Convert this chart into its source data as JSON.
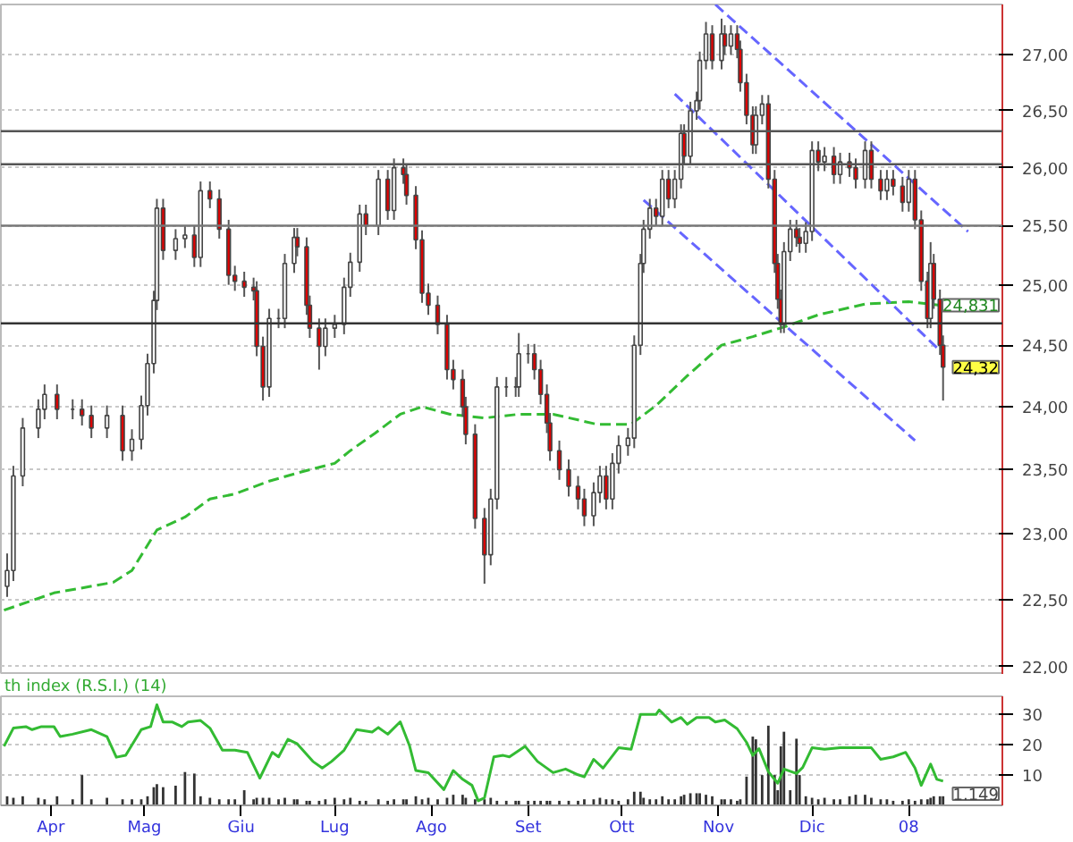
{
  "chart_data": [
    {
      "type": "candlestick",
      "log": true,
      "xlim": [
        "2007-03-16",
        "2008-01-31"
      ],
      "ylim": [
        21.94,
        27.46
      ],
      "tick_labels": "y",
      "grid": "y",
      "yticks": [
        {
          "value": 22,
          "label": "22,00"
        },
        {
          "value": 22.5,
          "label": "22,50"
        },
        {
          "value": 23,
          "label": "23,00"
        },
        {
          "value": 23.5,
          "label": "23,50"
        },
        {
          "value": 24,
          "label": "24,00"
        },
        {
          "value": 24.5,
          "label": "24,50"
        },
        {
          "value": 25,
          "label": "25,00"
        },
        {
          "value": 25.5,
          "label": "25,50"
        },
        {
          "value": 26,
          "label": "26,00"
        },
        {
          "value": 26.5,
          "label": "26,50"
        },
        {
          "value": 27,
          "label": "27,00"
        }
      ],
      "colors": [
        "#ffffff",
        "#ffffff",
        "#ffffff",
        "#ffffff",
        "#ffffff",
        "#e00000",
        "#444444",
        "#e00000",
        "#e00000",
        "#ffffff",
        "#e00000",
        "#ffffff",
        "#ffffff",
        "#ffffff",
        "#ffffff",
        "#ffffff",
        "#e00000",
        "#ffffff",
        "#ffffff",
        "#e00000",
        "#ffffff",
        "#e00000",
        "#e00000",
        "#e00000",
        "#e00000",
        "#e00000",
        "#e00000",
        "#e00000",
        "#e00000",
        "#ffffff",
        "#444444",
        "#ffffff",
        "#ffffff",
        "#e00000",
        "#e00000",
        "#e00000",
        "#e00000",
        "#ffffff",
        "#ffffff",
        "#ffffff",
        "#ffffff",
        "#ffffff",
        "#e00000",
        "#ffffff",
        "#e00000",
        "#ffffff",
        "#e00000",
        "#e00000",
        "#e00000",
        "#e00000",
        "#e00000",
        "#e00000",
        "#e00000",
        "#e00000",
        "#e00000",
        "#e00000",
        "#e00000",
        "#e00000",
        "#ffffff",
        "#ffffff",
        "#444444",
        "#444444",
        "#ffffff",
        "#444444",
        "#e00000",
        "#e00000",
        "#e00000",
        "#e00000",
        "#e00000",
        "#e00000",
        "#e00000",
        "#e00000",
        "#ffffff",
        "#ffffff",
        "#e00000",
        "#ffffff",
        "#ffffff",
        "#ffffff",
        "#ffffff",
        "#ffffff",
        "#ffffff",
        "#ffffff",
        "#e00000",
        "#ffffff",
        "#e00000",
        "#ffffff",
        "#ffffff",
        "#e00000",
        "#ffffff",
        "#ffffff",
        "#ffffff",
        "#ffffff",
        "#e00000",
        "#ffffff",
        "#e00000",
        "#ffffff",
        "#e00000",
        "#e00000",
        "#e00000",
        "#e00000",
        "#ffffff",
        "#ffffff",
        "#e00000",
        "#e00000",
        "#e00000",
        "#e00000",
        "#ffffff",
        "#ffffff",
        "#e00000",
        "#e00000",
        "#ffffff",
        "#ffffff",
        "#e00000",
        "#ffffff",
        "#e00000",
        "#ffffff",
        "#e00000",
        "#e00000",
        "#ffffff",
        "#e00000",
        "#e00000",
        "#ffffff",
        "#e00000",
        "#e00000",
        "#ffffff",
        "#e00000",
        "#e00000",
        "#e00000",
        "#ffffff",
        "#e00000",
        "#e00000",
        "#e00000"
      ],
      "x": [
        "2007-03-18",
        "2007-03-20",
        "2007-03-23",
        "2007-03-28",
        "2007-03-30",
        "2007-04-03",
        "2007-04-08",
        "2007-04-11",
        "2007-04-14",
        "2007-04-19",
        "2007-04-24",
        "2007-04-27",
        "2007-04-30",
        "2007-05-02",
        "2007-05-04",
        "2007-05-05",
        "2007-05-07",
        "2007-05-11",
        "2007-05-14",
        "2007-05-17",
        "2007-05-19",
        "2007-05-22",
        "2007-05-25",
        "2007-05-28",
        "2007-05-30",
        "2007-06-02",
        "2007-06-05",
        "2007-06-06",
        "2007-06-08",
        "2007-06-10",
        "2007-06-13",
        "2007-06-15",
        "2007-06-18",
        "2007-06-19",
        "2007-06-22",
        "2007-06-23",
        "2007-06-26",
        "2007-06-28",
        "2007-07-01",
        "2007-07-04",
        "2007-07-06",
        "2007-07-09",
        "2007-07-11",
        "2007-07-15",
        "2007-07-18",
        "2007-07-20",
        "2007-07-23",
        "2007-07-24",
        "2007-07-27",
        "2007-07-29",
        "2007-07-31",
        "2007-08-03",
        "2007-08-06",
        "2007-08-08",
        "2007-08-11",
        "2007-08-12",
        "2007-08-15",
        "2007-08-18",
        "2007-08-20",
        "2007-08-22",
        "2007-08-25",
        "2007-08-28",
        "2007-08-29",
        "2007-09-01",
        "2007-09-03",
        "2007-09-05",
        "2007-09-07",
        "2007-09-08",
        "2007-09-11",
        "2007-09-14",
        "2007-09-17",
        "2007-09-19",
        "2007-09-22",
        "2007-09-24",
        "2007-09-26",
        "2007-09-28",
        "2007-09-30",
        "2007-10-03",
        "2007-10-05",
        "2007-10-07",
        "2007-10-08",
        "2007-10-10",
        "2007-10-12",
        "2007-10-14",
        "2007-10-16",
        "2007-10-18",
        "2007-10-20",
        "2007-10-21",
        "2007-10-23",
        "2007-10-25",
        "2007-10-26",
        "2007-10-28",
        "2007-10-30",
        "2007-11-02",
        "2007-11-03",
        "2007-11-05",
        "2007-11-07",
        "2007-11-08",
        "2007-11-10",
        "2007-11-12",
        "2007-11-13",
        "2007-11-15",
        "2007-11-17",
        "2007-11-19",
        "2007-11-20",
        "2007-11-21",
        "2007-11-22",
        "2007-11-24",
        "2007-11-26",
        "2007-11-27",
        "2007-11-29",
        "2007-12-01",
        "2007-12-03",
        "2007-12-05",
        "2007-12-08",
        "2007-12-10",
        "2007-12-13",
        "2007-12-15",
        "2007-12-18",
        "2007-12-20",
        "2007-12-23",
        "2007-12-25",
        "2007-12-27",
        "2007-12-30",
        "2008-01-01",
        "2008-01-03",
        "2008-01-05",
        "2008-01-07",
        "2008-01-08",
        "2008-01-09",
        "2008-01-11",
        "2008-01-12"
      ],
      "ohlc": [
        [
          22.6,
          22.85,
          22.52,
          22.72
        ],
        [
          22.72,
          23.53,
          22.64,
          23.45
        ],
        [
          23.45,
          23.91,
          23.37,
          23.83
        ],
        [
          23.83,
          24.06,
          23.75,
          23.98
        ],
        [
          23.98,
          24.18,
          23.9,
          24.1
        ],
        [
          24.1,
          24.18,
          23.9,
          23.98
        ],
        [
          23.98,
          24.06,
          23.9,
          23.98
        ],
        [
          23.98,
          24.06,
          23.85,
          23.93
        ],
        [
          23.93,
          24.01,
          23.75,
          23.83
        ],
        [
          23.83,
          24.01,
          23.75,
          23.93
        ],
        [
          23.93,
          24.01,
          23.57,
          23.65
        ],
        [
          23.65,
          23.82,
          23.57,
          23.74
        ],
        [
          23.74,
          24.09,
          23.66,
          24.01
        ],
        [
          24.01,
          24.43,
          23.93,
          24.35
        ],
        [
          24.35,
          24.95,
          24.27,
          24.87
        ],
        [
          24.87,
          25.73,
          24.79,
          25.65
        ],
        [
          25.65,
          25.73,
          25.21,
          25.29
        ],
        [
          25.29,
          25.47,
          25.21,
          25.39
        ],
        [
          25.39,
          25.5,
          25.31,
          25.42
        ],
        [
          25.42,
          25.5,
          25.15,
          25.23
        ],
        [
          25.23,
          25.88,
          25.15,
          25.8
        ],
        [
          25.8,
          25.88,
          25.65,
          25.73
        ],
        [
          25.73,
          25.81,
          25.39,
          25.47
        ],
        [
          25.47,
          25.55,
          25.0,
          25.08
        ],
        [
          25.08,
          25.16,
          24.95,
          25.03
        ],
        [
          25.03,
          25.11,
          24.9,
          24.98
        ],
        [
          24.98,
          25.06,
          24.87,
          24.95
        ],
        [
          24.95,
          25.03,
          24.41,
          24.49
        ],
        [
          24.49,
          24.57,
          24.05,
          24.16
        ],
        [
          24.16,
          24.8,
          24.08,
          24.72
        ],
        [
          24.72,
          24.8,
          24.64,
          24.72
        ],
        [
          24.72,
          25.26,
          24.64,
          25.18
        ],
        [
          25.18,
          25.48,
          25.1,
          25.4
        ],
        [
          25.4,
          25.48,
          25.24,
          25.32
        ],
        [
          25.32,
          25.4,
          24.75,
          24.83
        ],
        [
          24.83,
          24.91,
          24.56,
          24.64
        ],
        [
          24.64,
          24.72,
          24.3,
          24.49
        ],
        [
          24.49,
          24.72,
          24.41,
          24.64
        ],
        [
          24.64,
          24.75,
          24.56,
          24.67
        ],
        [
          24.67,
          25.06,
          24.59,
          24.98
        ],
        [
          24.98,
          25.27,
          24.9,
          25.19
        ],
        [
          25.19,
          25.68,
          25.11,
          25.6
        ],
        [
          25.6,
          25.68,
          25.42,
          25.5
        ],
        [
          25.5,
          25.98,
          25.42,
          25.9
        ],
        [
          25.9,
          25.98,
          25.55,
          25.63
        ],
        [
          25.63,
          26.08,
          25.55,
          26.0
        ],
        [
          26.0,
          26.08,
          25.86,
          25.94
        ],
        [
          25.94,
          26.02,
          25.68,
          25.76
        ],
        [
          25.76,
          25.84,
          25.3,
          25.38
        ],
        [
          25.38,
          25.46,
          24.85,
          24.93
        ],
        [
          24.93,
          25.01,
          24.75,
          24.83
        ],
        [
          24.83,
          24.91,
          24.59,
          24.67
        ],
        [
          24.67,
          24.75,
          24.22,
          24.3
        ],
        [
          24.3,
          24.38,
          24.14,
          24.22
        ],
        [
          24.22,
          24.3,
          23.92,
          24.0
        ],
        [
          24.0,
          24.08,
          23.7,
          23.78
        ],
        [
          23.78,
          23.86,
          23.04,
          23.12
        ],
        [
          23.12,
          23.2,
          22.62,
          22.84
        ],
        [
          22.84,
          23.35,
          22.76,
          23.27
        ],
        [
          23.27,
          24.24,
          23.19,
          24.16
        ],
        [
          24.16,
          24.24,
          24.08,
          24.16
        ],
        [
          24.16,
          24.24,
          24.08,
          24.16
        ],
        [
          24.16,
          24.6,
          24.08,
          24.43
        ],
        [
          24.43,
          24.51,
          24.35,
          24.43
        ],
        [
          24.43,
          24.51,
          24.22,
          24.3
        ],
        [
          24.3,
          24.38,
          24.02,
          24.1
        ],
        [
          24.1,
          24.18,
          23.79,
          23.87
        ],
        [
          23.87,
          23.95,
          23.57,
          23.65
        ],
        [
          23.65,
          23.73,
          23.42,
          23.5
        ],
        [
          23.5,
          23.58,
          23.29,
          23.37
        ],
        [
          23.37,
          23.45,
          23.19,
          23.27
        ],
        [
          23.27,
          23.35,
          23.06,
          23.14
        ],
        [
          23.14,
          23.4,
          23.06,
          23.32
        ],
        [
          23.32,
          23.53,
          23.24,
          23.45
        ],
        [
          23.45,
          23.53,
          23.19,
          23.27
        ],
        [
          23.27,
          23.63,
          23.19,
          23.55
        ],
        [
          23.55,
          23.77,
          23.47,
          23.69
        ],
        [
          23.69,
          23.83,
          23.61,
          23.75
        ],
        [
          23.75,
          24.58,
          23.67,
          24.5
        ],
        [
          24.5,
          25.26,
          24.42,
          25.18
        ],
        [
          25.18,
          25.55,
          25.1,
          25.47
        ],
        [
          25.47,
          25.73,
          25.39,
          25.65
        ],
        [
          25.65,
          25.73,
          25.5,
          25.58
        ],
        [
          25.58,
          25.98,
          25.5,
          25.9
        ],
        [
          25.9,
          25.98,
          25.65,
          25.73
        ],
        [
          25.73,
          25.98,
          25.65,
          25.9
        ],
        [
          25.9,
          26.38,
          25.82,
          26.3
        ],
        [
          26.3,
          26.38,
          26.02,
          26.1
        ],
        [
          26.1,
          26.58,
          26.02,
          26.5
        ],
        [
          26.5,
          26.67,
          26.42,
          26.59
        ],
        [
          26.59,
          27.03,
          26.51,
          26.95
        ],
        [
          26.95,
          27.3,
          26.87,
          27.19
        ],
        [
          27.19,
          27.27,
          26.87,
          26.95
        ],
        [
          26.95,
          27.33,
          26.87,
          27.19
        ],
        [
          27.19,
          27.27,
          27.0,
          27.08
        ],
        [
          27.08,
          27.27,
          27.0,
          27.19
        ],
        [
          27.19,
          27.27,
          26.97,
          27.05
        ],
        [
          27.05,
          27.13,
          26.67,
          26.75
        ],
        [
          26.75,
          26.83,
          26.38,
          26.46
        ],
        [
          26.46,
          26.54,
          26.12,
          26.2
        ],
        [
          26.2,
          26.54,
          26.12,
          26.46
        ],
        [
          26.46,
          26.64,
          26.38,
          26.56
        ],
        [
          26.56,
          26.64,
          25.82,
          25.9
        ],
        [
          25.9,
          25.98,
          25.1,
          25.18
        ],
        [
          25.18,
          25.26,
          24.8,
          24.88
        ],
        [
          24.88,
          24.96,
          24.6,
          24.67
        ],
        [
          24.67,
          25.36,
          24.6,
          25.28
        ],
        [
          25.28,
          25.55,
          25.2,
          25.47
        ],
        [
          25.47,
          25.55,
          25.32,
          25.4
        ],
        [
          25.4,
          25.48,
          25.27,
          25.35
        ],
        [
          25.35,
          25.53,
          25.27,
          25.45
        ],
        [
          25.45,
          26.23,
          25.37,
          26.15
        ],
        [
          26.15,
          26.23,
          25.97,
          26.05
        ],
        [
          26.05,
          26.18,
          25.97,
          26.1
        ],
        [
          26.1,
          26.18,
          25.86,
          25.94
        ],
        [
          25.94,
          26.13,
          25.86,
          26.05
        ],
        [
          26.05,
          26.13,
          25.92,
          26.0
        ],
        [
          26.0,
          26.08,
          25.82,
          25.9
        ],
        [
          25.9,
          26.23,
          25.82,
          26.15
        ],
        [
          26.15,
          26.23,
          25.82,
          25.9
        ],
        [
          25.9,
          25.98,
          25.72,
          25.8
        ],
        [
          25.8,
          25.98,
          25.72,
          25.9
        ],
        [
          25.9,
          25.98,
          25.76,
          25.84
        ],
        [
          25.84,
          25.92,
          25.62,
          25.7
        ],
        [
          25.7,
          25.98,
          25.62,
          25.9
        ],
        [
          25.9,
          25.98,
          25.47,
          25.55
        ],
        [
          25.55,
          25.63,
          24.95,
          25.03
        ],
        [
          25.03,
          25.11,
          24.64,
          24.72
        ],
        [
          24.72,
          25.36,
          24.64,
          25.18
        ],
        [
          25.18,
          25.26,
          24.8,
          24.88
        ],
        [
          24.88,
          24.96,
          24.42,
          24.5
        ],
        [
          24.5,
          24.58,
          24.05,
          24.32
        ]
      ],
      "series": [
        {
          "type": "line",
          "color": "#33bb33",
          "line_style": "dashed",
          "x": [
            "2007-03-17",
            "2007-04-02",
            "2007-04-21",
            "2007-04-27",
            "2007-05-05",
            "2007-05-14",
            "2007-05-22",
            "2007-05-30",
            "2007-06-10",
            "2007-06-20",
            "2007-07-01",
            "2007-07-06",
            "2007-07-14",
            "2007-07-22",
            "2007-07-29",
            "2007-08-07",
            "2007-08-18",
            "2007-08-29",
            "2007-09-09",
            "2007-09-23",
            "2007-10-04",
            "2007-10-12",
            "2007-10-22",
            "2007-11-02",
            "2007-11-12",
            "2007-11-22",
            "2007-12-03",
            "2007-12-18",
            "2008-01-01",
            "2008-01-11"
          ],
          "values": [
            22.42,
            22.55,
            22.63,
            22.72,
            23.03,
            23.13,
            23.27,
            23.31,
            23.41,
            23.48,
            23.55,
            23.65,
            23.79,
            23.94,
            24.0,
            23.94,
            23.91,
            23.94,
            23.94,
            23.86,
            23.86,
            24.01,
            24.25,
            24.5,
            24.57,
            24.65,
            24.75,
            24.84,
            24.86,
            24.83
          ]
        },
        {
          "type": "line",
          "color": "#6666ff",
          "line_style": "dashed",
          "x": [
            "2007-10-31",
            "2008-01-20"
          ],
          "values": [
            27.46,
            25.45
          ]
        },
        {
          "type": "line",
          "color": "#6666ff",
          "line_style": "dashed",
          "x": [
            "2007-10-18",
            "2008-01-12"
          ],
          "values": [
            26.65,
            24.43
          ]
        },
        {
          "type": "line",
          "color": "#6666ff",
          "line_style": "dashed",
          "x": [
            "2007-10-08",
            "2008-01-03"
          ],
          "values": [
            25.72,
            23.73
          ]
        }
      ],
      "ref_lines": [
        {
          "axis": "y",
          "value": 26.32,
          "color": "#555555"
        },
        {
          "axis": "y",
          "value": 26.03,
          "color": "#555555"
        },
        {
          "axis": "y",
          "value": 25.5,
          "color": "#777777"
        },
        {
          "axis": "y",
          "value": 24.68,
          "color": "#333333"
        }
      ],
      "annotations": [
        "24,831",
        "24,32"
      ]
    },
    {
      "type": "line",
      "title": "th index (R.S.I.) (14)",
      "xlim": [
        "2007-03-16",
        "2008-01-31"
      ],
      "ylim": [
        0,
        36
      ],
      "grid": "y",
      "yticks": [
        10,
        20,
        30
      ],
      "xticks": [
        {
          "value": "2007-04-01",
          "label": "Apr"
        },
        {
          "value": "2007-05-01",
          "label": "Mag"
        },
        {
          "value": "2007-06-01",
          "label": "Giu"
        },
        {
          "value": "2007-07-01",
          "label": "Lug"
        },
        {
          "value": "2007-08-01",
          "label": "Ago"
        },
        {
          "value": "2007-09-01",
          "label": "Set"
        },
        {
          "value": "2007-10-01",
          "label": "Ott"
        },
        {
          "value": "2007-11-01",
          "label": "Nov"
        },
        {
          "value": "2007-12-01",
          "label": "Dic"
        },
        {
          "value": "2008-01-01",
          "label": "08"
        }
      ],
      "series": [
        {
          "type": "bar",
          "color": "#333333",
          "x": [
            "2007-03-18",
            "2007-03-20",
            "2007-03-23",
            "2007-03-28",
            "2007-03-30",
            "2007-04-03",
            "2007-04-08",
            "2007-04-11",
            "2007-04-14",
            "2007-04-19",
            "2007-04-24",
            "2007-04-27",
            "2007-04-30",
            "2007-05-02",
            "2007-05-04",
            "2007-05-05",
            "2007-05-07",
            "2007-05-11",
            "2007-05-14",
            "2007-05-17",
            "2007-05-19",
            "2007-05-22",
            "2007-05-25",
            "2007-05-28",
            "2007-05-30",
            "2007-06-02",
            "2007-06-05",
            "2007-06-06",
            "2007-06-08",
            "2007-06-10",
            "2007-06-13",
            "2007-06-15",
            "2007-06-18",
            "2007-06-19",
            "2007-06-22",
            "2007-06-23",
            "2007-06-26",
            "2007-06-28",
            "2007-07-01",
            "2007-07-04",
            "2007-07-06",
            "2007-07-09",
            "2007-07-11",
            "2007-07-15",
            "2007-07-18",
            "2007-07-20",
            "2007-07-23",
            "2007-07-24",
            "2007-07-27",
            "2007-07-29",
            "2007-07-31",
            "2007-08-03",
            "2007-08-06",
            "2007-08-08",
            "2007-08-11",
            "2007-08-12",
            "2007-08-15",
            "2007-08-18",
            "2007-08-20",
            "2007-08-22",
            "2007-08-25",
            "2007-08-28",
            "2007-08-29",
            "2007-09-01",
            "2007-09-03",
            "2007-09-05",
            "2007-09-07",
            "2007-09-08",
            "2007-09-11",
            "2007-09-14",
            "2007-09-17",
            "2007-09-19",
            "2007-09-22",
            "2007-09-24",
            "2007-09-26",
            "2007-09-28",
            "2007-09-30",
            "2007-10-03",
            "2007-10-05",
            "2007-10-07",
            "2007-10-08",
            "2007-10-10",
            "2007-10-12",
            "2007-10-14",
            "2007-10-16",
            "2007-10-18",
            "2007-10-20",
            "2007-10-21",
            "2007-10-23",
            "2007-10-25",
            "2007-10-26",
            "2007-10-28",
            "2007-10-30",
            "2007-11-02",
            "2007-11-03",
            "2007-11-05",
            "2007-11-07",
            "2007-11-08",
            "2007-11-10",
            "2007-11-12",
            "2007-11-13",
            "2007-11-15",
            "2007-11-17",
            "2007-11-19",
            "2007-11-20",
            "2007-11-21",
            "2007-11-22",
            "2007-11-24",
            "2007-11-26",
            "2007-11-27",
            "2007-11-29",
            "2007-12-01",
            "2007-12-03",
            "2007-12-05",
            "2007-12-08",
            "2007-12-10",
            "2007-12-13",
            "2007-12-15",
            "2007-12-18",
            "2007-12-20",
            "2007-12-23",
            "2007-12-25",
            "2007-12-27",
            "2007-12-30",
            "2008-01-01",
            "2008-01-03",
            "2008-01-05",
            "2008-01-07",
            "2008-01-08",
            "2008-01-09",
            "2008-01-11",
            "2008-01-12"
          ],
          "values": [
            3,
            2.5,
            3,
            2.5,
            2,
            3,
            2,
            10,
            2,
            2.5,
            2,
            2,
            2,
            3,
            6,
            7,
            6,
            6.5,
            11,
            10.5,
            3,
            2.5,
            2,
            2,
            2,
            5,
            2,
            2.5,
            2.5,
            2.5,
            2,
            2.5,
            2,
            2,
            1.5,
            1.5,
            1.5,
            2,
            2.5,
            2,
            2.5,
            1.5,
            1.5,
            2,
            1.5,
            2,
            2,
            2,
            3,
            2,
            2.5,
            2,
            2.5,
            3.5,
            3.5,
            2.5,
            2,
            2,
            2.5,
            1.5,
            1.5,
            1.5,
            1.5,
            1.5,
            1.5,
            1.5,
            1.5,
            1.5,
            1.5,
            1.5,
            1.5,
            2,
            2,
            2.5,
            2,
            2,
            1.5,
            2,
            4.5,
            4.5,
            2.5,
            2,
            2,
            3,
            2,
            2,
            3,
            3.5,
            4,
            4,
            4,
            3.5,
            3,
            2,
            2,
            2,
            1.5,
            2,
            9.5,
            22.7,
            21.8,
            10,
            26.3,
            10,
            5,
            19.5,
            24.3,
            5,
            22,
            10,
            3,
            2.5,
            2,
            2.5,
            2,
            2,
            3,
            3.5,
            3.5,
            2.5,
            2,
            2,
            1.5,
            1.5,
            2,
            1.5,
            2,
            2,
            2.5,
            3,
            3,
            3
          ]
        },
        {
          "type": "line",
          "color": "#33bb33",
          "x": [
            "2007-03-17",
            "2007-03-20",
            "2007-03-24",
            "2007-03-26",
            "2007-03-29",
            "2007-04-02",
            "2007-04-04",
            "2007-04-08",
            "2007-04-14",
            "2007-04-19",
            "2007-04-22",
            "2007-04-25",
            "2007-04-30",
            "2007-05-03",
            "2007-05-05",
            "2007-05-07",
            "2007-05-10",
            "2007-05-13",
            "2007-05-15",
            "2007-05-19",
            "2007-05-22",
            "2007-05-26",
            "2007-05-30",
            "2007-06-03",
            "2007-06-07",
            "2007-06-11",
            "2007-06-13",
            "2007-06-16",
            "2007-06-19",
            "2007-06-24",
            "2007-06-27",
            "2007-06-30",
            "2007-07-04",
            "2007-07-08",
            "2007-07-13",
            "2007-07-15",
            "2007-07-18",
            "2007-07-22",
            "2007-07-25",
            "2007-07-27",
            "2007-07-31",
            "2007-08-05",
            "2007-08-08",
            "2007-08-11",
            "2007-08-14",
            "2007-08-16",
            "2007-08-18",
            "2007-08-21",
            "2007-08-24",
            "2007-08-26",
            "2007-08-31",
            "2007-09-04",
            "2007-09-09",
            "2007-09-13",
            "2007-09-17",
            "2007-09-19",
            "2007-09-22",
            "2007-09-25",
            "2007-09-30",
            "2007-10-04",
            "2007-10-07",
            "2007-10-12",
            "2007-10-13",
            "2007-10-17",
            "2007-10-20",
            "2007-10-22",
            "2007-10-25",
            "2007-10-29",
            "2007-10-31",
            "2007-11-03",
            "2007-11-07",
            "2007-11-10",
            "2007-11-12",
            "2007-11-14",
            "2007-11-17",
            "2007-11-20",
            "2007-11-22",
            "2007-11-26",
            "2007-11-28",
            "2007-12-01",
            "2007-12-05",
            "2007-12-10",
            "2007-12-15",
            "2007-12-20",
            "2007-12-23",
            "2007-12-27",
            "2007-12-31",
            "2008-01-03",
            "2008-01-05",
            "2008-01-08",
            "2008-01-10",
            "2008-01-12"
          ],
          "values": [
            19.5,
            25.5,
            26,
            25,
            26,
            26,
            22.7,
            23.5,
            25,
            22.7,
            15.9,
            16.5,
            25,
            26,
            33.2,
            27.5,
            27.5,
            26,
            27.5,
            28,
            25.5,
            18.2,
            18.2,
            17.5,
            9,
            17.5,
            16,
            21.8,
            20.3,
            14.5,
            12.3,
            14.5,
            18.2,
            25,
            24.2,
            25.7,
            23.5,
            27.6,
            19.6,
            11.5,
            10.8,
            5.2,
            11.5,
            8.6,
            6.6,
            1.5,
            2.5,
            16,
            16.5,
            16,
            19.5,
            14.5,
            10.8,
            12,
            10.1,
            9.4,
            15.2,
            12.3,
            19,
            18.5,
            30,
            30,
            31.5,
            27.5,
            29,
            26.8,
            29,
            29,
            27.5,
            28.2,
            25.3,
            20.8,
            16.5,
            18.7,
            11.1,
            7.3,
            12,
            10.5,
            12.5,
            19,
            18.5,
            19,
            19,
            19,
            15.2,
            16,
            17.5,
            12.3,
            6.6,
            13.6,
            8.6,
            8
          ]
        }
      ],
      "annotations": [
        "1.149"
      ]
    }
  ]
}
